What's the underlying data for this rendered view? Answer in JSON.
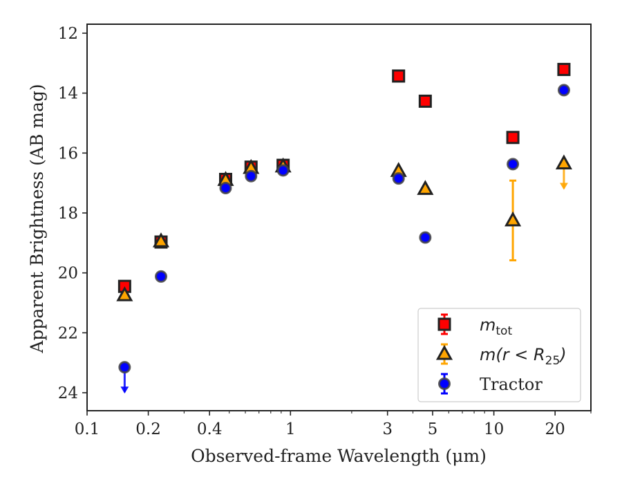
{
  "chart_data": {
    "type": "scatter",
    "title": "",
    "xlabel": "Observed-frame Wavelength (μm)",
    "ylabel": "Apparent Brightness (AB mag)",
    "xscale": "log",
    "xlim": [
      0.1,
      30
    ],
    "ylim": [
      24.6,
      11.7
    ],
    "y_inverted": true,
    "x_ticks": [
      {
        "value": 0.1,
        "label": "0.1"
      },
      {
        "value": 0.2,
        "label": "0.2"
      },
      {
        "value": 0.4,
        "label": "0.4"
      },
      {
        "value": 1,
        "label": "1"
      },
      {
        "value": 3,
        "label": "3"
      },
      {
        "value": 5,
        "label": "5"
      },
      {
        "value": 10,
        "label": "10"
      },
      {
        "value": 20,
        "label": "20"
      }
    ],
    "y_ticks": [
      {
        "value": 12,
        "label": "12"
      },
      {
        "value": 14,
        "label": "14"
      },
      {
        "value": 16,
        "label": "16"
      },
      {
        "value": 18,
        "label": "18"
      },
      {
        "value": 20,
        "label": "20"
      },
      {
        "value": 22,
        "label": "22"
      },
      {
        "value": 24,
        "label": "24"
      }
    ],
    "grid": false,
    "legend": {
      "position": "bottom-right",
      "entries": [
        {
          "series": 0,
          "tex_base": "m",
          "tex_sub": "tot",
          "tex_rest": ""
        },
        {
          "series": 1,
          "tex_base": "m",
          "tex_paren": "(r < R",
          "tex_sub": "25",
          "tex_close": ")"
        },
        {
          "series": 2,
          "text": "Tractor"
        }
      ]
    },
    "series": [
      {
        "marker": "square",
        "color": "#ff0000",
        "edge": "#222222",
        "points": [
          {
            "x": 0.153,
            "y": 20.45,
            "err": 0.1
          },
          {
            "x": 0.231,
            "y": 18.97,
            "err": 0.05
          },
          {
            "x": 0.48,
            "y": 16.88,
            "err": 0.03
          },
          {
            "x": 0.64,
            "y": 16.47,
            "err": 0.03
          },
          {
            "x": 0.92,
            "y": 16.41,
            "err": 0.03
          },
          {
            "x": 3.4,
            "y": 13.43,
            "err": 0.03
          },
          {
            "x": 4.6,
            "y": 14.27,
            "err": 0.03
          },
          {
            "x": 12.4,
            "y": 15.48,
            "err": 0.03
          },
          {
            "x": 22.1,
            "y": 13.21,
            "err": 0.03
          }
        ]
      },
      {
        "marker": "triangle",
        "color": "#ffa500",
        "edge": "#222222",
        "points": [
          {
            "x": 0.153,
            "y": 20.75,
            "err": 0.05
          },
          {
            "x": 0.231,
            "y": 18.95,
            "err": 0.05
          },
          {
            "x": 0.48,
            "y": 16.9,
            "err": 0.03
          },
          {
            "x": 0.64,
            "y": 16.5,
            "err": 0.03
          },
          {
            "x": 0.92,
            "y": 16.45,
            "err": 0.03
          },
          {
            "x": 3.4,
            "y": 16.6,
            "err": 0.03
          },
          {
            "x": 4.6,
            "y": 17.2,
            "err": 0.03
          },
          {
            "x": 12.4,
            "y": 18.25,
            "err_low": 1.33,
            "err_high": 1.33
          },
          {
            "x": 22.1,
            "y": 16.35,
            "upper_limit": true
          }
        ]
      },
      {
        "marker": "circle",
        "color": "#0000ff",
        "edge": "#444444",
        "points": [
          {
            "x": 0.153,
            "y": 23.15,
            "upper_limit": true
          },
          {
            "x": 0.231,
            "y": 20.12,
            "err": 0.05
          },
          {
            "x": 0.48,
            "y": 17.17,
            "err": 0.03
          },
          {
            "x": 0.64,
            "y": 16.77,
            "err": 0.03
          },
          {
            "x": 0.92,
            "y": 16.58,
            "err": 0.03
          },
          {
            "x": 3.4,
            "y": 16.85,
            "err": 0.03
          },
          {
            "x": 4.6,
            "y": 18.82,
            "err": 0.03
          },
          {
            "x": 12.4,
            "y": 16.37,
            "err": 0.03
          },
          {
            "x": 22.1,
            "y": 13.9,
            "err": 0.03
          }
        ]
      }
    ]
  }
}
